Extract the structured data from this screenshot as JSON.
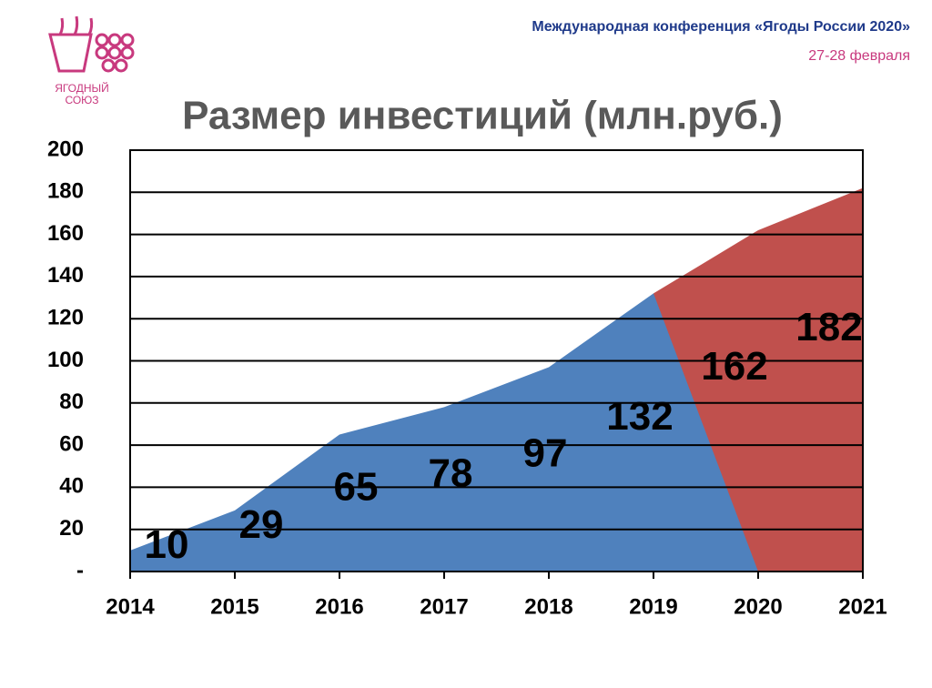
{
  "header": {
    "conference": "Международная конференция «Ягоды России 2020»",
    "dates": "27-28 февраля",
    "logo_line1": "ЯГОДНЫЙ",
    "logo_line2": "СОЮЗ"
  },
  "chart_data": {
    "type": "area",
    "title": "Размер инвестиций (млн.руб.)",
    "categories": [
      "2014",
      "2015",
      "2016",
      "2017",
      "2018",
      "2019",
      "2020",
      "2021"
    ],
    "series": [
      {
        "color": "#c0504d",
        "values": [
          null,
          null,
          null,
          null,
          null,
          132,
          162,
          182
        ]
      },
      {
        "color": "#4f81bd",
        "values": [
          10,
          29,
          65,
          78,
          97,
          132,
          0,
          null
        ]
      }
    ],
    "ylim": [
      0,
      200
    ],
    "yticks": [
      {
        "value": 0,
        "label": "-"
      },
      20,
      40,
      60,
      80,
      100,
      120,
      140,
      160,
      180,
      200
    ],
    "grid": true
  }
}
